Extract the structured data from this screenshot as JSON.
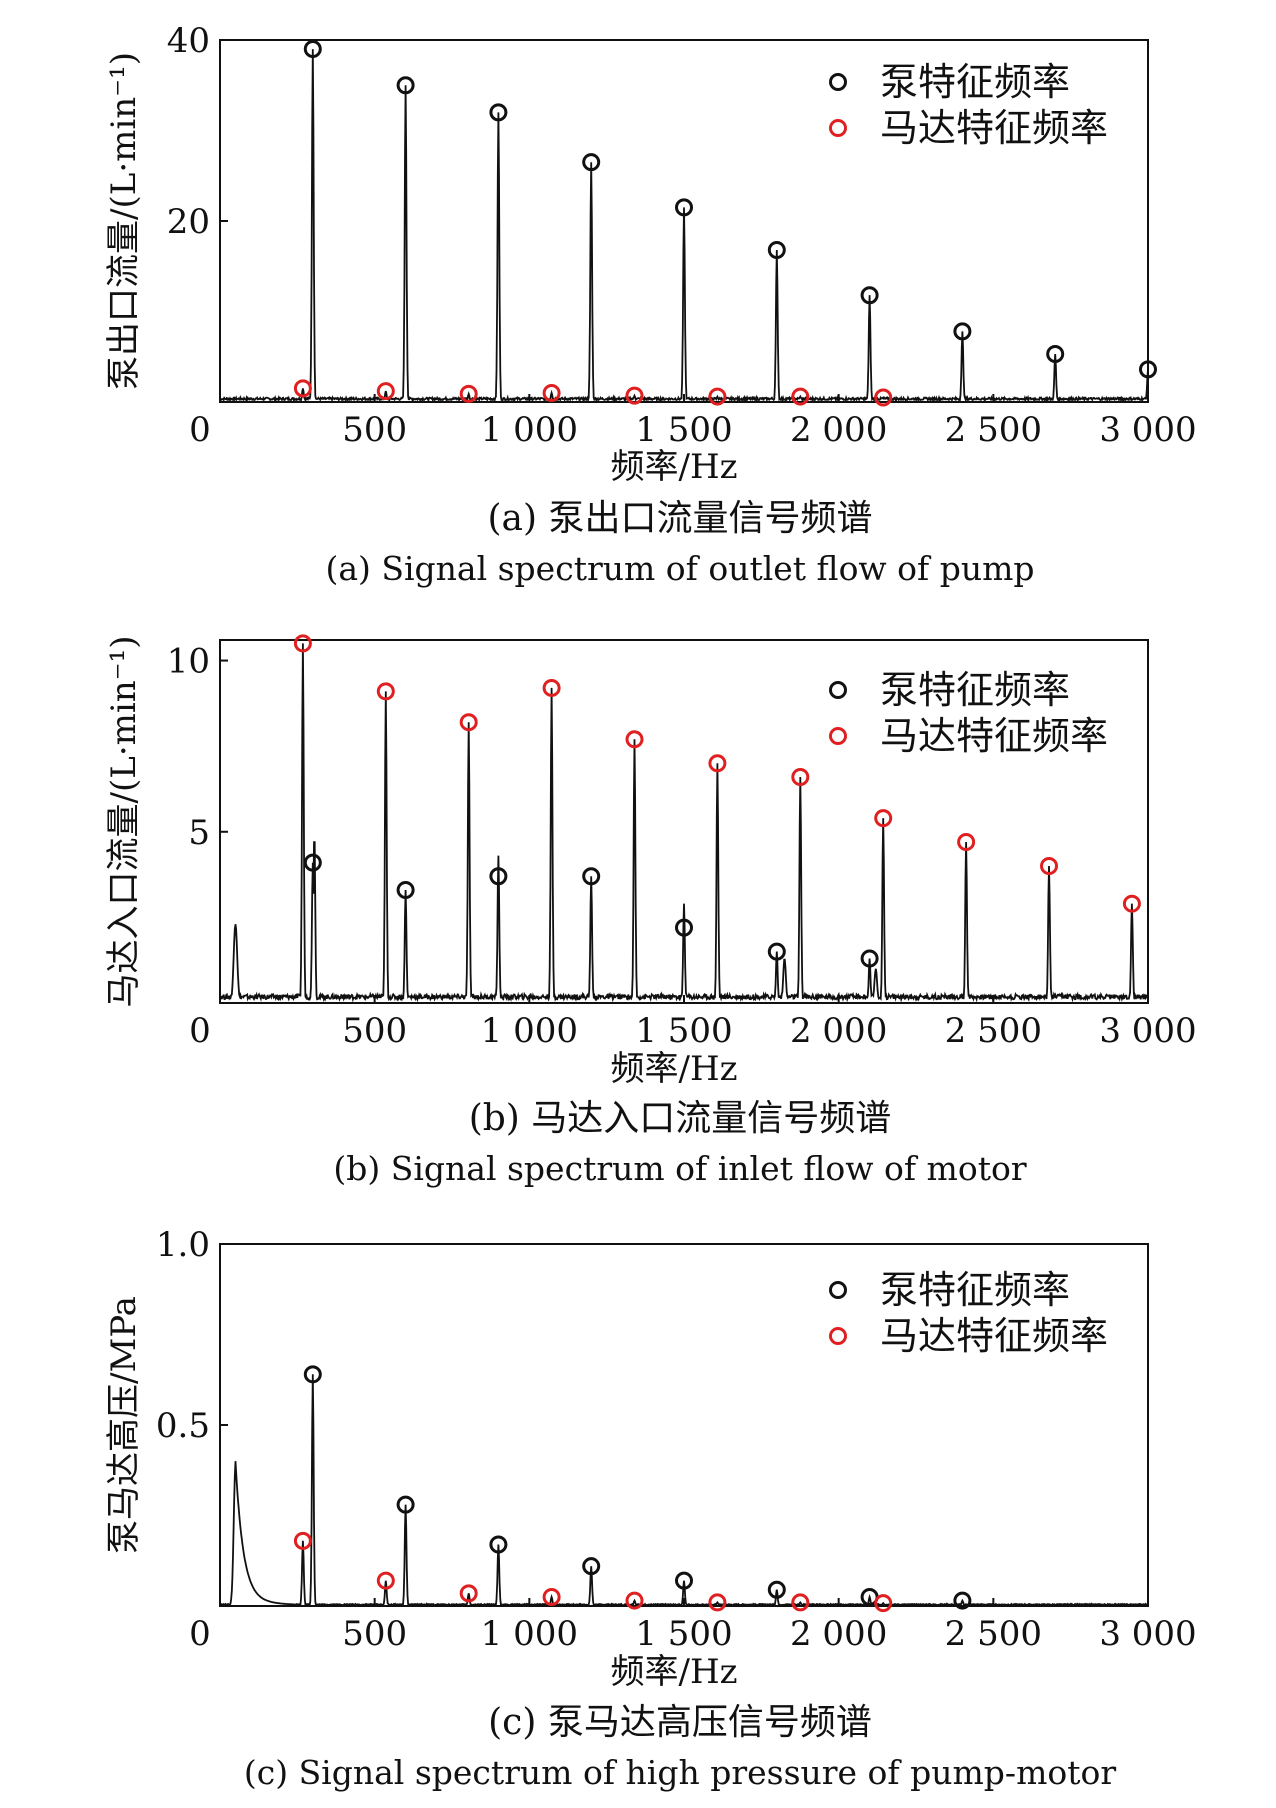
{
  "chart_data": [
    {
      "type": "line",
      "caption_zh": "(a) 泵出口流量信号频谱",
      "caption_en": "(a) Signal spectrum of outlet flow of pump",
      "xlabel": "频率/Hz",
      "ylabel": "泵出口流量/(L·min⁻¹)",
      "xlim": [
        0,
        3000
      ],
      "ylim": [
        0,
        40
      ],
      "xticks": [
        "0",
        "500",
        "1 000",
        "1 500",
        "2 000",
        "2 500",
        "3 000"
      ],
      "xtick_values": [
        0,
        500,
        1000,
        1500,
        2000,
        2500,
        3000
      ],
      "yticks": [
        "20",
        "40"
      ],
      "ytick_values": [
        20,
        40
      ],
      "legend": [
        "泵特征频率",
        "马达特征频率"
      ],
      "legend_position": "top-right",
      "series": [
        {
          "name": "泵特征频率",
          "color": "#111111",
          "points": [
            [
              300,
              39.0
            ],
            [
              600,
              35.0
            ],
            [
              900,
              32.0
            ],
            [
              1200,
              26.5
            ],
            [
              1500,
              21.5
            ],
            [
              1800,
              16.8
            ],
            [
              2100,
              11.8
            ],
            [
              2400,
              7.8
            ],
            [
              2700,
              5.3
            ],
            [
              3000,
              3.6
            ]
          ]
        },
        {
          "name": "马达特征频率",
          "color": "#e02020",
          "points": [
            [
              268,
              1.5
            ],
            [
              536,
              1.2
            ],
            [
              804,
              0.9
            ],
            [
              1072,
              1.0
            ],
            [
              1340,
              0.7
            ],
            [
              1608,
              0.6
            ],
            [
              1876,
              0.6
            ],
            [
              2144,
              0.5
            ]
          ]
        }
      ]
    },
    {
      "type": "line",
      "caption_zh": "(b) 马达入口流量信号频谱",
      "caption_en": "(b) Signal spectrum of inlet flow of motor",
      "xlabel": "频率/Hz",
      "ylabel": "马达入口流量/(L·min⁻¹)",
      "xlim": [
        0,
        3000
      ],
      "ylim": [
        0,
        10.6
      ],
      "xticks": [
        "0",
        "500",
        "1 000",
        "1 500",
        "2 000",
        "2 500",
        "3 000"
      ],
      "xtick_values": [
        0,
        500,
        1000,
        1500,
        2000,
        2500,
        3000
      ],
      "yticks": [
        "5",
        "10"
      ],
      "ytick_values": [
        5,
        10
      ],
      "legend": [
        "泵特征频率",
        "马达特征频率"
      ],
      "legend_position": "top-right",
      "series": [
        {
          "name": "泵特征频率",
          "color": "#111111",
          "points": [
            [
              300,
              4.1
            ],
            [
              600,
              3.3
            ],
            [
              900,
              3.7
            ],
            [
              1200,
              3.7
            ],
            [
              1500,
              2.2
            ],
            [
              1800,
              1.5
            ],
            [
              2100,
              1.3
            ]
          ]
        },
        {
          "name": "马达特征频率",
          "color": "#e02020",
          "points": [
            [
              268,
              10.5
            ],
            [
              536,
              9.1
            ],
            [
              804,
              8.2
            ],
            [
              1072,
              9.2
            ],
            [
              1340,
              7.7
            ],
            [
              1608,
              7.0
            ],
            [
              1876,
              6.6
            ],
            [
              2144,
              5.4
            ],
            [
              2412,
              4.7
            ],
            [
              2680,
              4.0
            ],
            [
              2948,
              2.9
            ]
          ]
        }
      ]
    },
    {
      "type": "line",
      "caption_zh": "(c) 泵马达高压信号频谱",
      "caption_en": "(c) Signal spectrum of high pressure of pump-motor",
      "xlabel": "频率/Hz",
      "ylabel": "泵马达高压/MPa",
      "xlim": [
        0,
        3000
      ],
      "ylim": [
        0,
        1.0
      ],
      "xticks": [
        "0",
        "500",
        "1 000",
        "1 500",
        "2 000",
        "2 500",
        "3 000"
      ],
      "xtick_values": [
        0,
        500,
        1000,
        1500,
        2000,
        2500,
        3000
      ],
      "yticks": [
        "0.5",
        "1.0"
      ],
      "ytick_values": [
        0.5,
        1.0
      ],
      "legend": [
        "泵特征频率",
        "马达特征频率"
      ],
      "legend_position": "top-right",
      "series": [
        {
          "name": "泵特征频率",
          "color": "#111111",
          "points": [
            [
              300,
              0.64
            ],
            [
              600,
              0.28
            ],
            [
              900,
              0.17
            ],
            [
              1200,
              0.11
            ],
            [
              1500,
              0.07
            ],
            [
              1800,
              0.045
            ],
            [
              2100,
              0.025
            ],
            [
              2400,
              0.015
            ]
          ]
        },
        {
          "name": "马达特征频率",
          "color": "#e02020",
          "points": [
            [
              268,
              0.18
            ],
            [
              536,
              0.07
            ],
            [
              804,
              0.035
            ],
            [
              1072,
              0.025
            ],
            [
              1340,
              0.015
            ],
            [
              1608,
              0.01
            ],
            [
              1876,
              0.01
            ],
            [
              2144,
              0.008
            ]
          ]
        }
      ]
    }
  ]
}
